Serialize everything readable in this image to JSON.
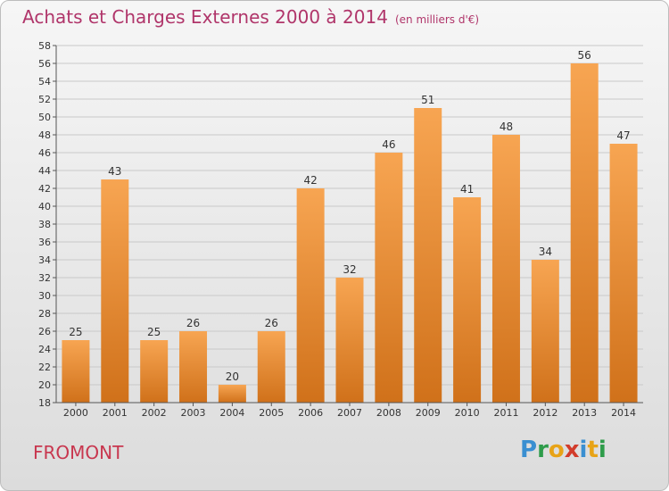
{
  "header": {
    "title": "Achats et Charges Externes 2000 à 2014",
    "subtitle": "(en milliers d'€)"
  },
  "footer": {
    "commune": "FROMONT",
    "logo_letters": [
      "P",
      "r",
      "o",
      "x",
      "i",
      "t",
      "i"
    ],
    "logo_colors": [
      "#3a8fd1",
      "#2e9c4a",
      "#e8a317",
      "#d23c2b",
      "#3a8fd1",
      "#e8a317",
      "#2e9c4a"
    ]
  },
  "chart_data": {
    "type": "bar",
    "categories": [
      "2000",
      "2001",
      "2002",
      "2003",
      "2004",
      "2005",
      "2006",
      "2007",
      "2008",
      "2009",
      "2010",
      "2011",
      "2012",
      "2013",
      "2014"
    ],
    "values": [
      25,
      43,
      25,
      26,
      20,
      26,
      42,
      32,
      46,
      51,
      41,
      48,
      34,
      56,
      47
    ],
    "ylim": [
      18,
      58
    ],
    "yticks": [
      18,
      20,
      22,
      24,
      26,
      28,
      30,
      32,
      34,
      36,
      38,
      40,
      42,
      44,
      46,
      48,
      50,
      52,
      54,
      56,
      58
    ],
    "grid": true,
    "bar_color_top": "#f7a552",
    "bar_color_bottom": "#d0711a",
    "data_labels": true
  }
}
